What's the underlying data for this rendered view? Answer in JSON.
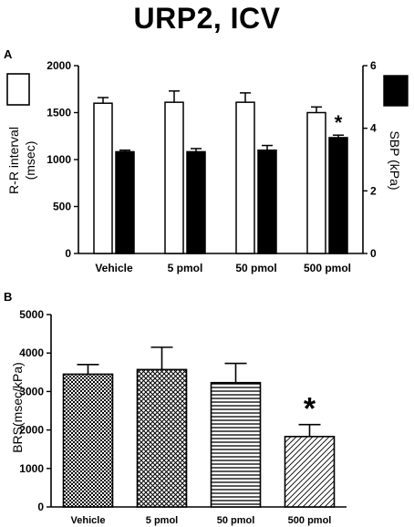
{
  "page": {
    "title": "URP2, ICV"
  },
  "colors": {
    "open_bar": "#ffffff",
    "filled_bar": "#000000",
    "stroke": "#000000"
  },
  "chart_data": [
    {
      "panel_label": "A",
      "type": "bar",
      "categories": [
        "Vehicle",
        "5 pmol",
        "50 pmol",
        "500 pmol"
      ],
      "series": [
        {
          "name": "",
          "axis": "left",
          "fill": "open",
          "legend_icon": "open-square",
          "values": [
            1600,
            1610,
            1610,
            1500
          ],
          "errors": [
            60,
            120,
            100,
            60
          ]
        },
        {
          "name": "",
          "axis": "right",
          "fill": "solid",
          "legend_icon": "solid-square",
          "values": [
            3.25,
            3.25,
            3.3,
            3.7
          ],
          "errors": [
            0.05,
            0.1,
            0.15,
            0.08
          ]
        }
      ],
      "ylabel_left": "R-R interval\n(msec)",
      "ylabel_right": "SBP (kPa)",
      "ylim_left": [
        0,
        2000
      ],
      "yticks_left": [
        0,
        500,
        1000,
        1500,
        2000
      ],
      "ylim_right": [
        0,
        6
      ],
      "yticks_right": [
        0,
        2,
        4,
        6
      ],
      "annotations": [
        {
          "category": "500 pmol",
          "series": 1,
          "text": "*"
        }
      ],
      "grid": false
    },
    {
      "panel_label": "B",
      "type": "bar",
      "categories": [
        "Vehicle",
        "5 pmol",
        "50 pmol",
        "500 pmol"
      ],
      "values": [
        3450,
        3570,
        3230,
        1830
      ],
      "errors": [
        250,
        580,
        500,
        310
      ],
      "patterns": [
        "checker",
        "diagonal-cross",
        "horizontal-lines",
        "diagonal-lines"
      ],
      "ylabel": "BRS(msec/kPa)",
      "ylim": [
        0,
        5000
      ],
      "yticks": [
        0,
        1000,
        2000,
        3000,
        4000,
        5000
      ],
      "annotations": [
        {
          "category": "500 pmol",
          "text": "*"
        }
      ],
      "grid": false
    }
  ]
}
